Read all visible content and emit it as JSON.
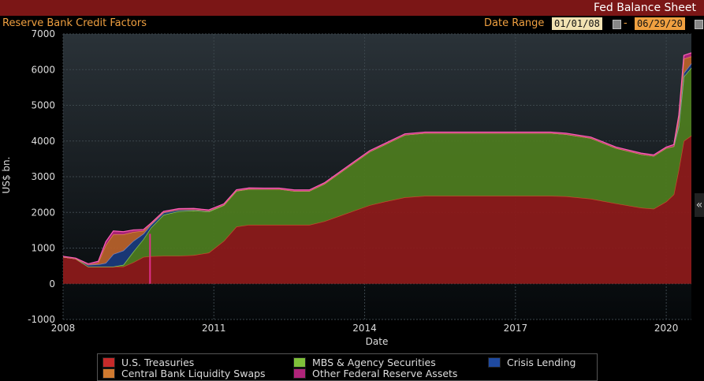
{
  "window_title": "Fed Balance Sheet",
  "header": {
    "chart_name": "Reserve Bank Credit Factors",
    "date_range_label": "Date Range",
    "start_date": "01/01/08",
    "end_date": "06/29/20",
    "separator": "-"
  },
  "collapse_glyph": "«",
  "colors": {
    "us_treasuries": "#8b1a1a",
    "mbs": "#4c7a1f",
    "crisis_lending": "#1a3a7a",
    "cb_swaps": "#b5602a",
    "other": "#b0247a"
  },
  "chart_data": {
    "type": "area",
    "stacked": true,
    "xlabel": "Date",
    "ylabel": "US$ bn.",
    "ylim": [
      -1000,
      7000
    ],
    "yticks": [
      -1000,
      0,
      1000,
      2000,
      3000,
      4000,
      5000,
      6000,
      7000
    ],
    "xticks": [
      "2008",
      "2011",
      "2014",
      "2017",
      "2020"
    ],
    "grid": true,
    "legend_position": "bottom",
    "x": [
      2008.0,
      2008.25,
      2008.5,
      2008.7,
      2008.85,
      2009.0,
      2009.2,
      2009.4,
      2009.6,
      2009.75,
      2010.0,
      2010.3,
      2010.6,
      2010.9,
      2011.2,
      2011.45,
      2011.7,
      2012.0,
      2012.3,
      2012.6,
      2012.9,
      2013.2,
      2013.5,
      2013.8,
      2014.1,
      2014.4,
      2014.8,
      2015.2,
      2016.0,
      2017.0,
      2017.7,
      2018.0,
      2018.5,
      2019.0,
      2019.5,
      2019.75,
      2020.0,
      2020.15,
      2020.25,
      2020.35,
      2020.5
    ],
    "series": [
      {
        "name": "U.S. Treasuries",
        "color_key": "us_treasuries",
        "values": [
          750,
          700,
          480,
          480,
          480,
          480,
          480,
          600,
          750,
          770,
          780,
          780,
          800,
          870,
          1200,
          1600,
          1650,
          1650,
          1650,
          1650,
          1650,
          1750,
          1900,
          2050,
          2200,
          2300,
          2420,
          2460,
          2460,
          2460,
          2460,
          2450,
          2380,
          2250,
          2130,
          2100,
          2300,
          2500,
          3200,
          4000,
          4150
        ]
      },
      {
        "name": "MBS & Agency Securities",
        "color_key": "mbs",
        "values": [
          0,
          0,
          0,
          0,
          0,
          0,
          50,
          300,
          500,
          800,
          1150,
          1250,
          1250,
          1150,
          1000,
          1000,
          1000,
          1000,
          1000,
          950,
          950,
          1050,
          1200,
          1350,
          1500,
          1600,
          1750,
          1760,
          1760,
          1760,
          1760,
          1740,
          1700,
          1550,
          1500,
          1480,
          1500,
          1350,
          1200,
          1800,
          1900
        ]
      },
      {
        "name": "Crisis Lending",
        "color_key": "crisis_lending",
        "values": [
          0,
          0,
          50,
          60,
          100,
          350,
          400,
          300,
          150,
          80,
          60,
          40,
          30,
          20,
          10,
          5,
          5,
          0,
          0,
          0,
          0,
          0,
          0,
          0,
          0,
          0,
          0,
          0,
          0,
          0,
          0,
          0,
          0,
          0,
          0,
          0,
          0,
          0,
          50,
          100,
          120
        ]
      },
      {
        "name": "Central Bank Liquidity Swaps",
        "color_key": "cb_swaps",
        "values": [
          0,
          0,
          0,
          50,
          500,
          550,
          450,
          250,
          80,
          20,
          10,
          5,
          0,
          0,
          0,
          0,
          0,
          0,
          0,
          0,
          0,
          0,
          0,
          0,
          0,
          0,
          0,
          0,
          0,
          0,
          0,
          0,
          0,
          0,
          0,
          0,
          0,
          0,
          200,
          400,
          200
        ]
      },
      {
        "name": "Other Federal Reserve Assets",
        "color_key": "other",
        "values": [
          20,
          20,
          30,
          40,
          100,
          100,
          80,
          60,
          40,
          30,
          30,
          30,
          30,
          30,
          30,
          30,
          30,
          30,
          30,
          30,
          30,
          30,
          30,
          30,
          30,
          30,
          30,
          30,
          30,
          30,
          30,
          30,
          30,
          30,
          30,
          30,
          30,
          50,
          80,
          100,
          100
        ]
      }
    ]
  }
}
